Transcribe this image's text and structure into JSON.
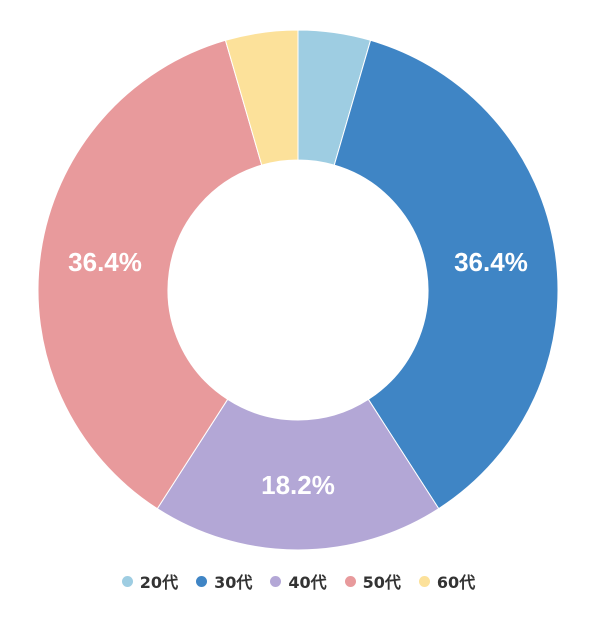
{
  "chart_data": {
    "type": "pie",
    "style": "donut",
    "title": "",
    "categories": [
      "20代",
      "30代",
      "40代",
      "50代",
      "60代"
    ],
    "values": [
      4.5,
      36.4,
      18.2,
      36.4,
      4.5
    ],
    "data_labels": [
      "",
      "36.4%",
      "18.2%",
      "36.4%",
      ""
    ],
    "colors": [
      "#9ecde2",
      "#3f85c5",
      "#b3a7d6",
      "#e89a9c",
      "#fce19a"
    ],
    "start_angle": "top",
    "direction": "clockwise",
    "legend_position": "bottom"
  }
}
